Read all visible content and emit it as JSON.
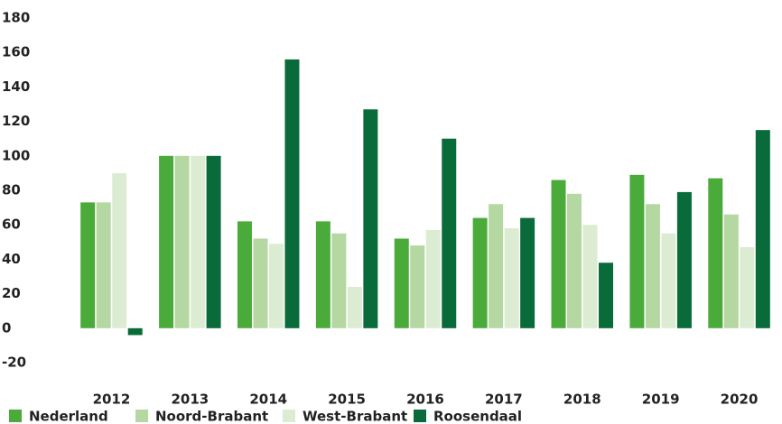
{
  "chart_data": {
    "type": "bar",
    "categories": [
      "2012",
      "2013",
      "2014",
      "2015",
      "2016",
      "2017",
      "2018",
      "2019",
      "2020"
    ],
    "series": [
      {
        "name": "Nederland",
        "color": "#4aab3b",
        "values": [
          73,
          100,
          62,
          62,
          52,
          64,
          86,
          89,
          87
        ]
      },
      {
        "name": "Noord-Brabant",
        "color": "#b5d7a1",
        "values": [
          73,
          100,
          52,
          55,
          48,
          72,
          78,
          72,
          66
        ]
      },
      {
        "name": "West-Brabant",
        "color": "#dcecd3",
        "values": [
          90,
          100,
          49,
          24,
          57,
          58,
          60,
          55,
          47
        ]
      },
      {
        "name": "Roosendaal",
        "color": "#0a6b3a",
        "values": [
          -4,
          100,
          156,
          127,
          110,
          64,
          38,
          79,
          115
        ]
      }
    ],
    "ylim": [
      -20,
      180
    ],
    "yticks": [
      -20,
      0,
      20,
      40,
      60,
      80,
      100,
      120,
      140,
      160,
      180
    ],
    "grid": false,
    "legend": "bottom"
  }
}
